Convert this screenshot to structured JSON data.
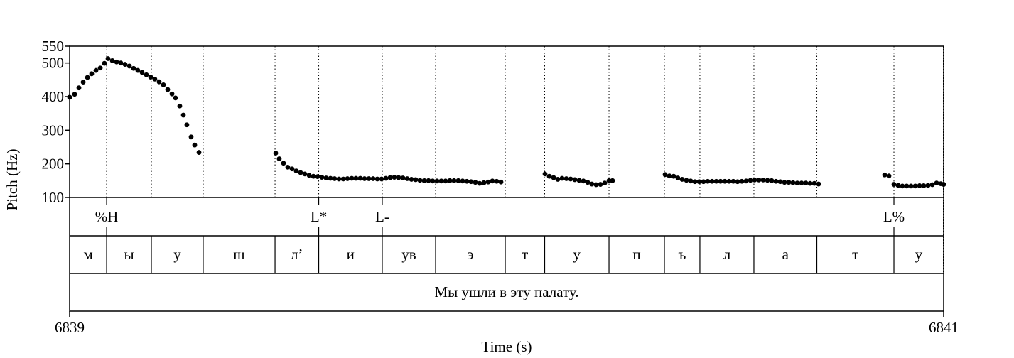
{
  "chart_data": {
    "type": "scatter",
    "ylabel": "Pitch (Hz)",
    "xlabel": "Time (s)",
    "xlim": [
      6839,
      6841
    ],
    "ylim": [
      100,
      550
    ],
    "x_tick_labels": [
      "6839",
      "6841"
    ],
    "y_ticks": [
      100,
      200,
      300,
      400,
      500,
      550
    ],
    "segments_time_fraction": [
      0,
      0.0423,
      0.0935,
      0.1528,
      0.235,
      0.285,
      0.3577,
      0.4187,
      0.4984,
      0.5435,
      0.6171,
      0.6805,
      0.7211,
      0.7829,
      0.8549,
      0.9431,
      1.0
    ],
    "tone_tier": [
      {
        "label": "%H",
        "t": 0.0423
      },
      {
        "label": "L*",
        "t": 0.285
      },
      {
        "label": "L-",
        "t": 0.3577
      },
      {
        "label": "L%",
        "t": 0.9431
      }
    ],
    "segment_tier": [
      "м",
      "ы",
      "у",
      "ш",
      "л’",
      "и",
      "ув",
      "э",
      "т",
      "у",
      "п",
      "ъ",
      "л",
      "а",
      "т",
      "у"
    ],
    "sentence": "Мы ушли в эту палату.",
    "pitch_contours": [
      [
        [
          0.0,
          398
        ],
        [
          0.0057,
          407
        ],
        [
          0.0106,
          426
        ],
        [
          0.0155,
          443
        ],
        [
          0.0204,
          457
        ],
        [
          0.0252,
          468
        ],
        [
          0.0301,
          478
        ],
        [
          0.035,
          485
        ],
        [
          0.0398,
          499
        ],
        [
          0.0439,
          513
        ],
        [
          0.0488,
          507
        ],
        [
          0.0537,
          503
        ],
        [
          0.0585,
          500
        ],
        [
          0.0634,
          496
        ],
        [
          0.0683,
          491
        ],
        [
          0.0732,
          484
        ],
        [
          0.078,
          478
        ],
        [
          0.0829,
          472
        ],
        [
          0.0878,
          465
        ],
        [
          0.0927,
          458
        ],
        [
          0.0975,
          452
        ],
        [
          0.1024,
          444
        ],
        [
          0.1073,
          435
        ],
        [
          0.1122,
          421
        ],
        [
          0.1171,
          408
        ],
        [
          0.1211,
          396
        ],
        [
          0.126,
          372
        ],
        [
          0.1301,
          345
        ],
        [
          0.1341,
          316
        ],
        [
          0.139,
          280
        ],
        [
          0.1431,
          256
        ],
        [
          0.148,
          234
        ]
      ],
      [
        [
          0.2358,
          232
        ],
        [
          0.2398,
          215
        ],
        [
          0.2447,
          202
        ],
        [
          0.2496,
          190
        ],
        [
          0.2545,
          185
        ],
        [
          0.2593,
          179
        ],
        [
          0.2642,
          174
        ],
        [
          0.2691,
          170
        ],
        [
          0.274,
          166
        ],
        [
          0.2789,
          163
        ],
        [
          0.2837,
          162
        ],
        [
          0.2886,
          160
        ],
        [
          0.2935,
          158
        ],
        [
          0.2984,
          157
        ],
        [
          0.3032,
          156
        ],
        [
          0.3081,
          155
        ],
        [
          0.313,
          155
        ],
        [
          0.3179,
          156
        ],
        [
          0.3228,
          157
        ],
        [
          0.3276,
          157
        ],
        [
          0.3325,
          157
        ],
        [
          0.3374,
          156
        ],
        [
          0.3423,
          156
        ],
        [
          0.3472,
          156
        ],
        [
          0.352,
          155
        ],
        [
          0.3569,
          155
        ],
        [
          0.3618,
          157
        ],
        [
          0.3667,
          159
        ],
        [
          0.3715,
          160
        ],
        [
          0.3764,
          159
        ],
        [
          0.3813,
          158
        ],
        [
          0.3862,
          156
        ],
        [
          0.3911,
          154
        ],
        [
          0.3959,
          153
        ],
        [
          0.4008,
          151
        ],
        [
          0.4057,
          150
        ],
        [
          0.4106,
          150
        ],
        [
          0.4154,
          149
        ],
        [
          0.4203,
          149
        ],
        [
          0.4252,
          149
        ],
        [
          0.4301,
          149
        ],
        [
          0.435,
          150
        ],
        [
          0.4398,
          150
        ],
        [
          0.4447,
          150
        ],
        [
          0.4496,
          149
        ],
        [
          0.4545,
          148
        ],
        [
          0.4593,
          147
        ],
        [
          0.4642,
          145
        ],
        [
          0.4691,
          142
        ],
        [
          0.474,
          144
        ],
        [
          0.4789,
          146
        ],
        [
          0.4837,
          149
        ],
        [
          0.4886,
          148
        ],
        [
          0.4935,
          146
        ]
      ],
      [
        [
          0.5439,
          170
        ],
        [
          0.5488,
          163
        ],
        [
          0.5537,
          159
        ],
        [
          0.5585,
          154
        ],
        [
          0.5634,
          157
        ],
        [
          0.5683,
          156
        ],
        [
          0.5732,
          155
        ],
        [
          0.578,
          153
        ],
        [
          0.5829,
          151
        ],
        [
          0.5878,
          149
        ],
        [
          0.5927,
          145
        ],
        [
          0.5975,
          140
        ],
        [
          0.6024,
          138
        ],
        [
          0.6073,
          139
        ],
        [
          0.6122,
          143
        ],
        [
          0.6171,
          150
        ],
        [
          0.6211,
          150
        ]
      ],
      [
        [
          0.6813,
          168
        ],
        [
          0.6862,
          164
        ],
        [
          0.6911,
          163
        ],
        [
          0.6959,
          158
        ],
        [
          0.7008,
          154
        ],
        [
          0.7057,
          151
        ],
        [
          0.7106,
          149
        ],
        [
          0.7154,
          147
        ],
        [
          0.7203,
          147
        ],
        [
          0.7252,
          147
        ],
        [
          0.7301,
          148
        ],
        [
          0.735,
          148
        ],
        [
          0.7398,
          148
        ],
        [
          0.7447,
          148
        ],
        [
          0.7496,
          148
        ],
        [
          0.7545,
          148
        ],
        [
          0.7593,
          148
        ],
        [
          0.7642,
          147
        ],
        [
          0.7691,
          148
        ],
        [
          0.774,
          149
        ],
        [
          0.7789,
          151
        ],
        [
          0.7837,
          152
        ],
        [
          0.7886,
          152
        ],
        [
          0.7935,
          152
        ],
        [
          0.7984,
          151
        ],
        [
          0.8032,
          150
        ],
        [
          0.8081,
          148
        ],
        [
          0.813,
          147
        ],
        [
          0.8179,
          145
        ],
        [
          0.8228,
          145
        ],
        [
          0.8276,
          144
        ],
        [
          0.8325,
          143
        ],
        [
          0.8374,
          143
        ],
        [
          0.8423,
          143
        ],
        [
          0.8472,
          142
        ],
        [
          0.852,
          142
        ],
        [
          0.8569,
          140
        ]
      ],
      [
        [
          0.9325,
          167
        ],
        [
          0.9374,
          164
        ],
        [
          0.9431,
          139
        ],
        [
          0.948,
          136
        ],
        [
          0.9528,
          134
        ],
        [
          0.9577,
          134
        ],
        [
          0.9626,
          134
        ],
        [
          0.9675,
          134
        ],
        [
          0.9724,
          135
        ],
        [
          0.9772,
          135
        ],
        [
          0.9821,
          136
        ],
        [
          0.987,
          138
        ],
        [
          0.9919,
          143
        ],
        [
          0.9967,
          141
        ],
        [
          1.0,
          139
        ]
      ]
    ]
  }
}
